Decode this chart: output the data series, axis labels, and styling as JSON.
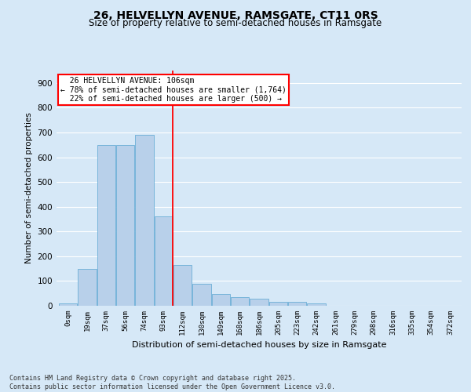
{
  "title1": "26, HELVELLYN AVENUE, RAMSGATE, CT11 0RS",
  "title2": "Size of property relative to semi-detached houses in Ramsgate",
  "xlabel": "Distribution of semi-detached houses by size in Ramsgate",
  "ylabel": "Number of semi-detached properties",
  "footnote": "Contains HM Land Registry data © Crown copyright and database right 2025.\nContains public sector information licensed under the Open Government Licence v3.0.",
  "bar_labels": [
    "0sqm",
    "19sqm",
    "37sqm",
    "56sqm",
    "74sqm",
    "93sqm",
    "112sqm",
    "130sqm",
    "149sqm",
    "168sqm",
    "186sqm",
    "205sqm",
    "223sqm",
    "242sqm",
    "261sqm",
    "279sqm",
    "298sqm",
    "316sqm",
    "335sqm",
    "354sqm",
    "372sqm"
  ],
  "bar_values": [
    10,
    150,
    650,
    650,
    690,
    360,
    165,
    90,
    48,
    35,
    30,
    15,
    15,
    10,
    0,
    0,
    0,
    0,
    0,
    0,
    0
  ],
  "bar_color": "#b8d0ea",
  "bar_edge_color": "#6aaed6",
  "red_line_index": 5.5,
  "red_line_label": "26 HELVELLYN AVENUE: 106sqm",
  "pct_smaller_text": "← 78% of semi-detached houses are smaller (1,764)",
  "pct_larger_text": "22% of semi-detached houses are larger (500) →",
  "ylim": [
    0,
    950
  ],
  "yticks": [
    0,
    100,
    200,
    300,
    400,
    500,
    600,
    700,
    800,
    900
  ],
  "bg_color": "#d6e8f7",
  "plot_bg_color": "#d6e8f7",
  "grid_color": "#ffffff",
  "title1_fontsize": 10,
  "title2_fontsize": 8.5,
  "footnote_fontsize": 6.0
}
